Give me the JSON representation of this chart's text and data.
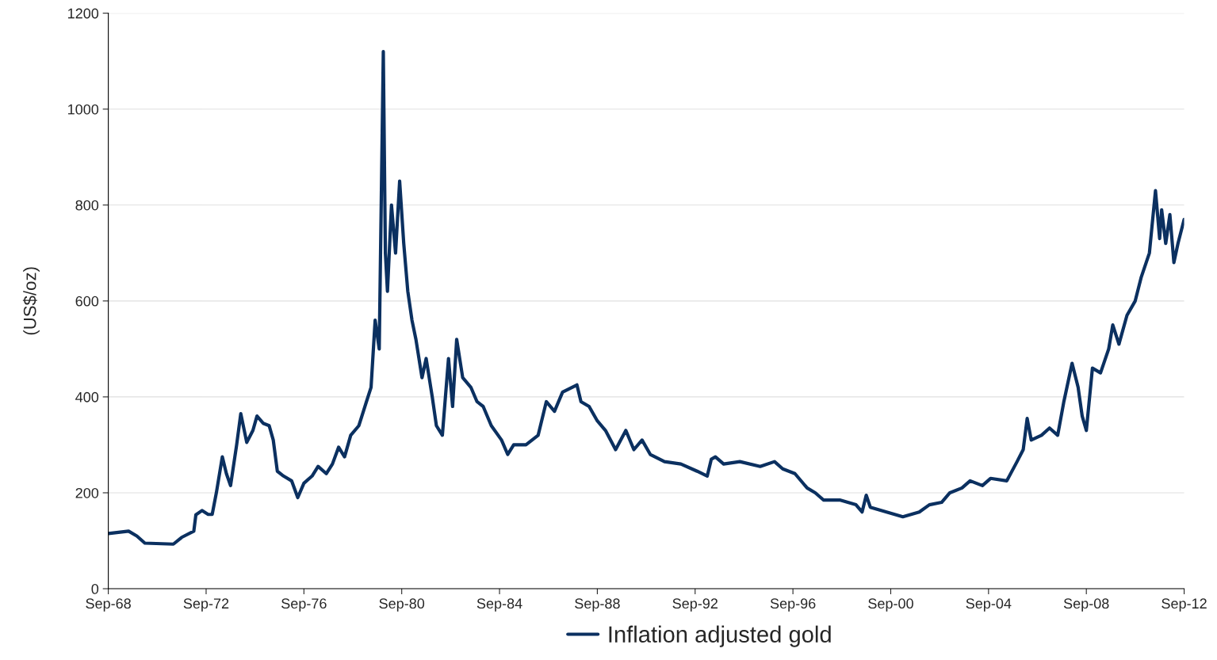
{
  "chart_data": {
    "type": "line",
    "ylabel": "(US$/oz)",
    "legend": "bottom",
    "grid": "y",
    "xlim": [
      "1968-09",
      "2012-09"
    ],
    "xticks": [
      {
        "value": "1968-09",
        "label": "Sep-68"
      },
      {
        "value": "1972-09",
        "label": "Sep-72"
      },
      {
        "value": "1976-09",
        "label": "Sep-76"
      },
      {
        "value": "1980-09",
        "label": "Sep-80"
      },
      {
        "value": "1984-09",
        "label": "Sep-84"
      },
      {
        "value": "1988-09",
        "label": "Sep-88"
      },
      {
        "value": "1992-09",
        "label": "Sep-92"
      },
      {
        "value": "1996-09",
        "label": "Sep-96"
      },
      {
        "value": "2000-09",
        "label": "Sep-00"
      },
      {
        "value": "2004-09",
        "label": "Sep-04"
      },
      {
        "value": "2008-09",
        "label": "Sep-08"
      },
      {
        "value": "2012-09",
        "label": "Sep-12"
      }
    ],
    "ylim": [
      0,
      1200
    ],
    "yticks": [
      0,
      200,
      400,
      600,
      800,
      1000,
      1200
    ],
    "series": [
      {
        "name": "Inflation adjusted gold",
        "color": "#0b3060",
        "x": [
          "1968-09",
          "1969-07",
          "1969-11",
          "1970-03",
          "1971-05",
          "1971-09",
          "1972-03",
          "1972-04",
          "1972-07",
          "1972-10",
          "1972-12",
          "1973-02",
          "1973-05",
          "1973-07",
          "1973-09",
          "1973-12",
          "1974-02",
          "1974-05",
          "1974-08",
          "1974-10",
          "1975-01",
          "1975-04",
          "1975-06",
          "1975-08",
          "1975-11",
          "1976-03",
          "1976-06",
          "1976-09",
          "1977-01",
          "1977-04",
          "1977-08",
          "1977-11",
          "1978-02",
          "1978-05",
          "1978-08",
          "1978-12",
          "1979-03",
          "1979-06",
          "1979-08",
          "1979-10",
          "1979-12",
          "1980-01",
          "1980-02",
          "1980-04",
          "1980-06",
          "1980-08",
          "1980-10",
          "1980-12",
          "1981-02",
          "1981-04",
          "1981-07",
          "1981-09",
          "1981-12",
          "1982-02",
          "1982-05",
          "1982-08",
          "1982-10",
          "1982-12",
          "1983-03",
          "1983-07",
          "1983-10",
          "1984-01",
          "1984-05",
          "1984-10",
          "1985-01",
          "1985-04",
          "1985-10",
          "1986-04",
          "1986-08",
          "1986-12",
          "1987-04",
          "1987-11",
          "1988-01",
          "1988-05",
          "1988-09",
          "1989-01",
          "1989-06",
          "1989-11",
          "1990-03",
          "1990-07",
          "1990-11",
          "1991-06",
          "1992-02",
          "1992-10",
          "1993-03",
          "1993-05",
          "1993-07",
          "1993-11",
          "1994-07",
          "1995-05",
          "1995-12",
          "1996-04",
          "1996-10",
          "1997-04",
          "1997-08",
          "1997-12",
          "1998-08",
          "1999-04",
          "1999-07",
          "1999-09",
          "1999-11",
          "2000-07",
          "2001-03",
          "2001-11",
          "2002-04",
          "2002-10",
          "2003-02",
          "2003-08",
          "2003-12",
          "2004-06",
          "2004-10",
          "2005-06",
          "2005-11",
          "2006-02",
          "2006-04",
          "2006-06",
          "2006-11",
          "2007-03",
          "2007-07",
          "2007-10",
          "2008-02",
          "2008-05",
          "2008-07",
          "2008-09",
          "2008-12",
          "2009-04",
          "2009-08",
          "2009-10",
          "2010-01",
          "2010-05",
          "2010-09",
          "2010-12",
          "2011-04",
          "2011-07",
          "2011-09",
          "2011-10",
          "2011-12",
          "2012-02",
          "2012-04",
          "2012-06",
          "2012-09"
        ],
        "values": [
          115,
          120,
          110,
          95,
          93,
          107,
          120,
          154,
          163,
          155,
          155,
          200,
          275,
          240,
          215,
          300,
          365,
          305,
          330,
          360,
          345,
          340,
          310,
          245,
          235,
          225,
          190,
          220,
          235,
          255,
          240,
          260,
          295,
          275,
          320,
          340,
          380,
          420,
          560,
          500,
          1120,
          700,
          620,
          800,
          700,
          850,
          720,
          620,
          560,
          520,
          440,
          480,
          400,
          340,
          320,
          480,
          380,
          520,
          440,
          420,
          390,
          380,
          340,
          310,
          280,
          300,
          300,
          320,
          390,
          370,
          410,
          425,
          390,
          380,
          350,
          330,
          290,
          330,
          290,
          310,
          280,
          265,
          260,
          245,
          235,
          270,
          275,
          260,
          265,
          255,
          265,
          250,
          240,
          210,
          200,
          185,
          185,
          175,
          160,
          195,
          170,
          160,
          150,
          160,
          175,
          180,
          200,
          210,
          225,
          215,
          230,
          225,
          265,
          290,
          355,
          310,
          320,
          335,
          320,
          390,
          470,
          420,
          360,
          330,
          460,
          450,
          500,
          550,
          510,
          570,
          600,
          650,
          700,
          830,
          730,
          790,
          720,
          780,
          680,
          720,
          770
        ]
      }
    ]
  }
}
